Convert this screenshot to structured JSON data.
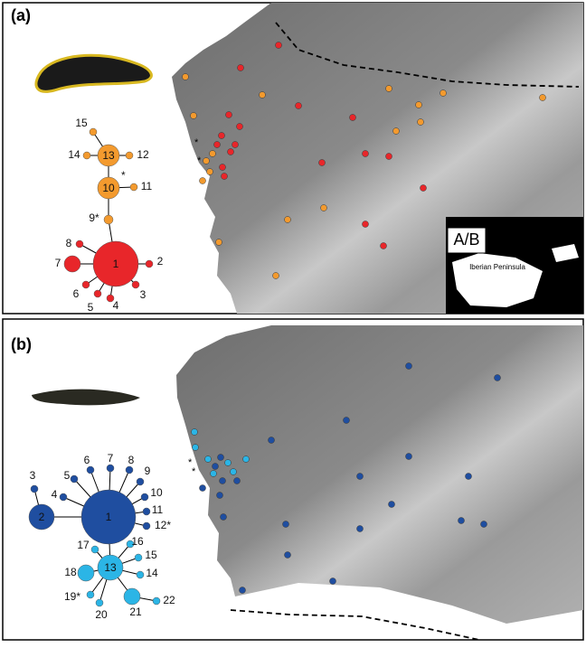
{
  "panels": [
    {
      "label": "(a)",
      "inset": {
        "label": "A/B",
        "region": "Iberian Peninsula"
      },
      "note": "*",
      "map_asterisks": [
        "*",
        "*"
      ],
      "nodes": [
        "1",
        "2",
        "3",
        "4",
        "5",
        "6",
        "7",
        "8",
        "9*",
        "10",
        "11",
        "12",
        "13",
        "14",
        "15"
      ]
    },
    {
      "label": "(b)",
      "map_asterisks": [
        "*",
        "*"
      ],
      "nodes": [
        "1",
        "2",
        "3",
        "4",
        "5",
        "6",
        "7",
        "8",
        "9",
        "10",
        "11",
        "12*",
        "13",
        "14",
        "15",
        "16",
        "17",
        "18",
        "19*",
        "20",
        "21",
        "22"
      ]
    }
  ]
}
